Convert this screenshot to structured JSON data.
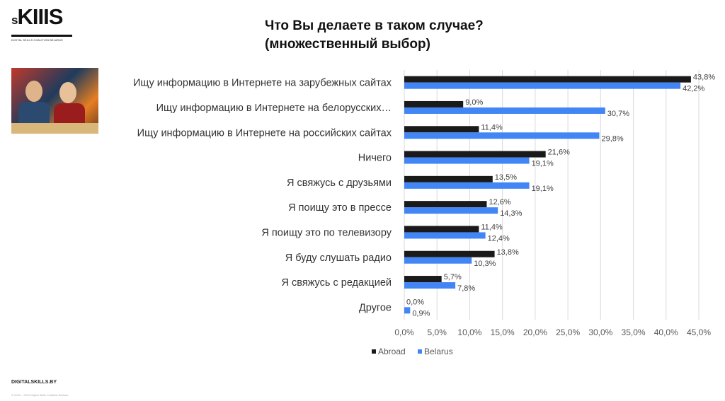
{
  "logo": {
    "main": "sKIIIS",
    "tagline": "DIGITAL SKILLS COALITION BELARUS"
  },
  "footer": {
    "site": "DIGITALSKILLS.BY",
    "copyright": "© 2020 – 2021 Digital Skills Coalition Belarus"
  },
  "chart_data": {
    "type": "bar",
    "orientation": "horizontal",
    "title": "Что Вы делаете в таком случае?",
    "subtitle": "(множественный выбор)",
    "categories": [
      "Ищу информацию в Интернете на зарубежных сайтах",
      "Ищу информацию в Интернете на белорусских…",
      "Ищу информацию в Интернете на российских сайтах",
      "Ничего",
      "Я свяжусь с друзьями",
      "Я поищу это в прессе",
      "Я поищу это по телевизору",
      "Я буду слушать радио",
      "Я свяжусь с редакцией",
      "Другое"
    ],
    "series": [
      {
        "name": "Abroad",
        "color": "#1a1a1a",
        "values": [
          43.8,
          9.0,
          11.4,
          21.6,
          13.5,
          12.6,
          11.4,
          13.8,
          5.7,
          0.0
        ],
        "labels": [
          "43,8%",
          "9,0%",
          "11,4%",
          "21,6%",
          "13,5%",
          "12,6%",
          "11,4%",
          "13,8%",
          "5,7%",
          "0,0%"
        ]
      },
      {
        "name": "Belarus",
        "color": "#4285f4",
        "values": [
          42.2,
          30.7,
          29.8,
          19.1,
          19.1,
          14.3,
          12.4,
          10.3,
          7.8,
          0.9
        ],
        "labels": [
          "42,2%",
          "30,7%",
          "29,8%",
          "19,1%",
          "19,1%",
          "14,3%",
          "12,4%",
          "10,3%",
          "7,8%",
          "0,9%"
        ]
      }
    ],
    "xlim": [
      0,
      45
    ],
    "xticks": [
      "0,0%",
      "5,0%",
      "10,0%",
      "15,0%",
      "20,0%",
      "25,0%",
      "30,0%",
      "35,0%",
      "40,0%",
      "45,0%"
    ],
    "grid": true,
    "legend": "bottom"
  }
}
